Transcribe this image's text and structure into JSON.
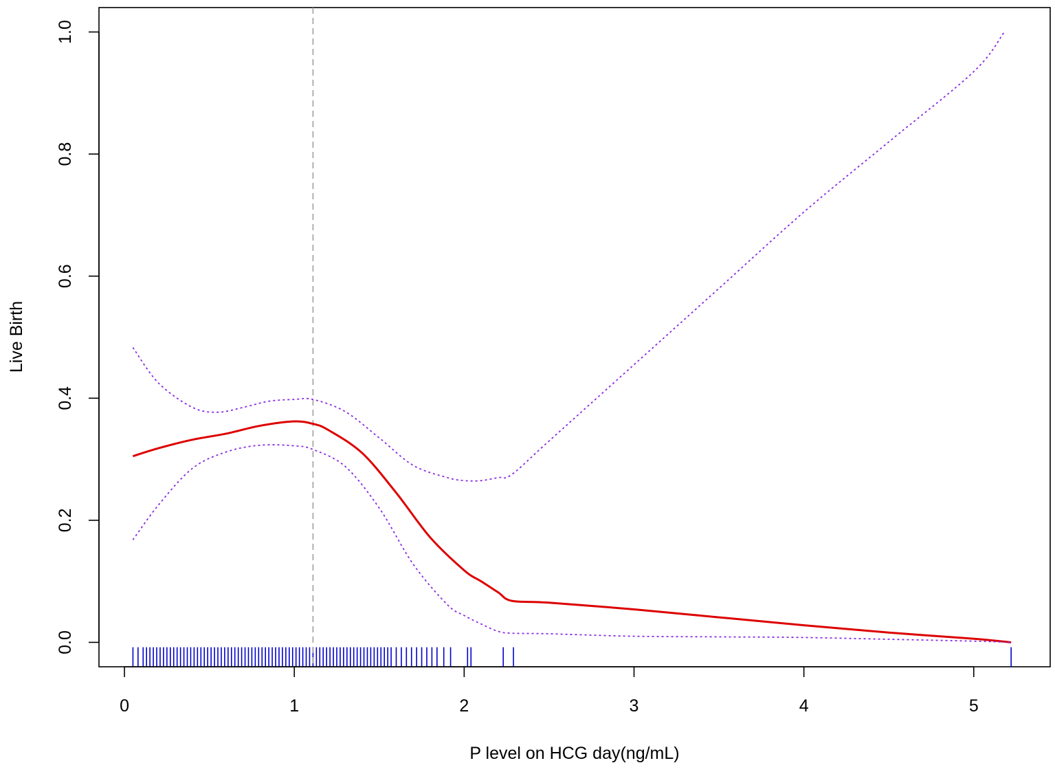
{
  "chart_data": {
    "type": "line",
    "title": "",
    "xlabel": "P level on HCG day(ng/mL)",
    "ylabel": "Live Birth",
    "xlim": [
      -0.15,
      5.45
    ],
    "ylim": [
      -0.04,
      1.04
    ],
    "x_ticks": [
      0,
      1,
      2,
      3,
      4,
      5
    ],
    "x_tick_labels": [
      "0",
      "1",
      "2",
      "3",
      "4",
      "5"
    ],
    "y_ticks": [
      0.0,
      0.2,
      0.4,
      0.6,
      0.8,
      1.0
    ],
    "y_tick_labels": [
      "0.0",
      "0.2",
      "0.4",
      "0.6",
      "0.8",
      "1.0"
    ],
    "grid": false,
    "legend": "none",
    "reference_line": {
      "x": 1.11,
      "style": "dashed",
      "color": "#a0a0a0"
    },
    "series": [
      {
        "role": "fitted-curve",
        "style": "solid",
        "color": "#dd0000",
        "x": [
          0.05,
          0.2,
          0.4,
          0.6,
          0.8,
          1.0,
          1.11,
          1.2,
          1.4,
          1.6,
          1.8,
          2.0,
          2.1,
          2.2,
          2.28,
          2.5,
          3.0,
          3.5,
          4.0,
          4.5,
          5.0,
          5.22
        ],
        "y": [
          0.305,
          0.318,
          0.332,
          0.342,
          0.355,
          0.362,
          0.358,
          0.348,
          0.31,
          0.245,
          0.172,
          0.118,
          0.1,
          0.082,
          0.068,
          0.065,
          0.054,
          0.041,
          0.028,
          0.016,
          0.006,
          0.0
        ]
      },
      {
        "role": "upper-confidence-bound",
        "style": "dotted",
        "color": "#8a2be2",
        "x": [
          0.05,
          0.2,
          0.4,
          0.55,
          0.7,
          0.85,
          1.0,
          1.11,
          1.3,
          1.5,
          1.7,
          1.9,
          2.0,
          2.1,
          2.2,
          2.28,
          2.5,
          3.0,
          3.5,
          4.0,
          4.5,
          5.0,
          5.18
        ],
        "y": [
          0.483,
          0.425,
          0.385,
          0.377,
          0.385,
          0.395,
          0.398,
          0.398,
          0.378,
          0.335,
          0.29,
          0.27,
          0.265,
          0.265,
          0.27,
          0.275,
          0.33,
          0.455,
          0.58,
          0.705,
          0.82,
          0.935,
          1.0
        ]
      },
      {
        "role": "lower-confidence-bound",
        "style": "dotted",
        "color": "#8a2be2",
        "x": [
          0.05,
          0.2,
          0.4,
          0.6,
          0.8,
          1.0,
          1.11,
          1.3,
          1.5,
          1.7,
          1.9,
          2.0,
          2.1,
          2.2,
          2.28,
          2.5,
          3.0,
          3.5,
          4.0,
          4.5,
          5.0,
          5.22
        ],
        "y": [
          0.168,
          0.225,
          0.285,
          0.312,
          0.323,
          0.322,
          0.316,
          0.288,
          0.22,
          0.128,
          0.062,
          0.044,
          0.03,
          0.018,
          0.015,
          0.014,
          0.01,
          0.009,
          0.008,
          0.005,
          0.002,
          0.0
        ]
      }
    ],
    "rug": {
      "color": "#0000cc",
      "x": [
        0.05,
        0.08,
        0.11,
        0.13,
        0.15,
        0.17,
        0.19,
        0.21,
        0.23,
        0.25,
        0.27,
        0.29,
        0.31,
        0.33,
        0.35,
        0.37,
        0.39,
        0.41,
        0.43,
        0.45,
        0.47,
        0.49,
        0.51,
        0.53,
        0.55,
        0.57,
        0.59,
        0.61,
        0.63,
        0.65,
        0.67,
        0.69,
        0.71,
        0.73,
        0.75,
        0.77,
        0.79,
        0.81,
        0.83,
        0.85,
        0.87,
        0.89,
        0.91,
        0.93,
        0.95,
        0.97,
        0.99,
        1.01,
        1.03,
        1.05,
        1.07,
        1.09,
        1.11,
        1.13,
        1.15,
        1.17,
        1.19,
        1.21,
        1.23,
        1.25,
        1.27,
        1.29,
        1.31,
        1.33,
        1.35,
        1.37,
        1.39,
        1.41,
        1.43,
        1.45,
        1.47,
        1.49,
        1.51,
        1.53,
        1.55,
        1.57,
        1.6,
        1.63,
        1.66,
        1.69,
        1.72,
        1.75,
        1.78,
        1.81,
        1.84,
        1.88,
        1.92,
        2.02,
        2.04,
        2.23,
        2.29,
        5.22
      ]
    }
  }
}
